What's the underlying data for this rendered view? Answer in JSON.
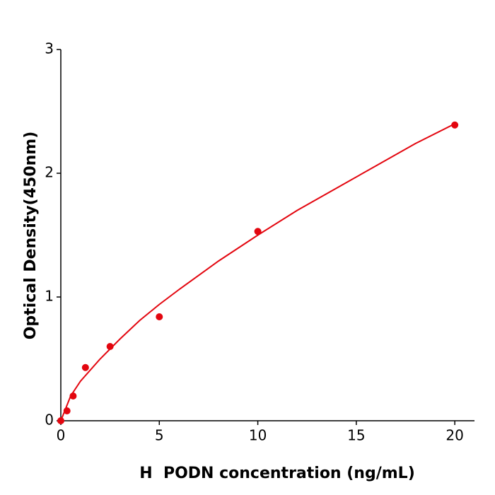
{
  "chart_data": {
    "type": "scatter",
    "x_label": "H  PODN concentration (ng/mL)",
    "y_label": "Optical Density(450nm)",
    "xlim": [
      0,
      21
    ],
    "xticks": [
      0,
      5,
      10,
      15,
      20
    ],
    "ylim": [
      0,
      3
    ],
    "yticks": [
      0,
      1,
      2,
      3
    ],
    "grid": false,
    "series": [
      {
        "mode": "markers",
        "color": "#e3060f",
        "x": [
          0,
          0.3125,
          0.625,
          1.25,
          2.5,
          5,
          10,
          20
        ],
        "values": [
          0.0,
          0.08,
          0.2,
          0.43,
          0.6,
          0.84,
          1.53,
          2.39
        ]
      },
      {
        "mode": "line",
        "color": "#e3060f",
        "x": [
          0,
          0.5,
          1,
          2,
          3,
          4,
          5,
          6,
          8,
          10,
          12,
          14,
          16,
          18,
          20
        ],
        "values": [
          0,
          0.2,
          0.32,
          0.5,
          0.66,
          0.81,
          0.94,
          1.06,
          1.29,
          1.5,
          1.7,
          1.88,
          2.06,
          2.24,
          2.4
        ]
      }
    ]
  }
}
